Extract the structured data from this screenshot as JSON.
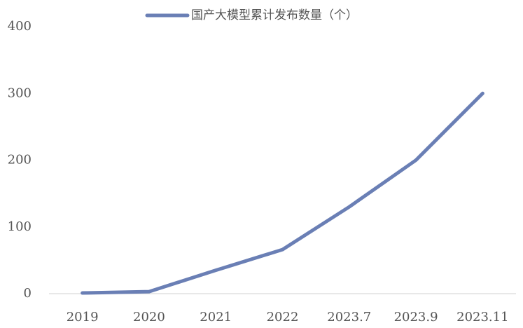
{
  "chart_data": {
    "type": "line",
    "categories": [
      "2019",
      "2020",
      "2021",
      "2022",
      "2023.7",
      "2023.9",
      "2023.11"
    ],
    "series": [
      {
        "name": "国产大模型累计发布数量（个）",
        "color": "#6a7fb5",
        "values": [
          1,
          3,
          35,
          66,
          130,
          200,
          300
        ]
      }
    ],
    "ylim": [
      0,
      400
    ],
    "yticks": [
      0,
      100,
      200,
      300,
      400
    ],
    "grid": false,
    "legend": "top"
  }
}
